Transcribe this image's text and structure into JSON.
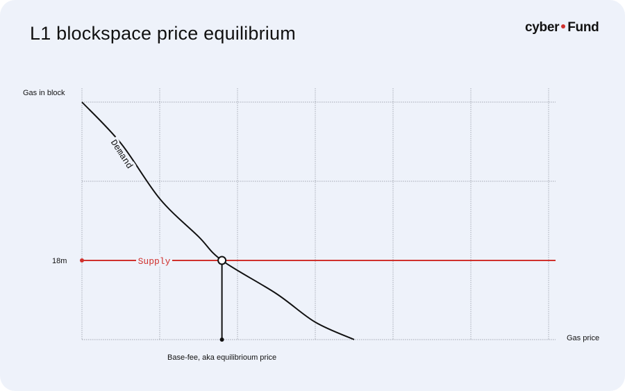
{
  "title": "L1 blockspace price equilibrium",
  "brand": {
    "part1": "cyber",
    "part2": "Fund"
  },
  "colors": {
    "demand": "#111111",
    "supply": "#d0312d",
    "grid": "#8a8f99",
    "background": "#eef2fa"
  },
  "chart_data": {
    "type": "line",
    "title": "L1 blockspace price equilibrium",
    "xlabel": "Gas price",
    "ylabel": "Gas in block",
    "xlim": [
      0,
      6
    ],
    "ylim": [
      0,
      3
    ],
    "grid": true,
    "series": [
      {
        "name": "Demand",
        "x": [
          0,
          0.5,
          1,
          1.5,
          1.8,
          2.5,
          3,
          3.5
        ],
        "y": [
          3,
          2.48,
          1.78,
          1.3,
          1.0,
          0.58,
          0.22,
          0.0
        ]
      },
      {
        "name": "Supply",
        "x": [
          0,
          6
        ],
        "y": [
          1.0,
          1.0
        ]
      }
    ],
    "tick_labels": [
      {
        "value": 1.0,
        "label": "18m"
      }
    ],
    "equilibrium": {
      "x": 1.8,
      "y": 1.0,
      "label": "Base-fee, aka equilibrioum price"
    }
  }
}
